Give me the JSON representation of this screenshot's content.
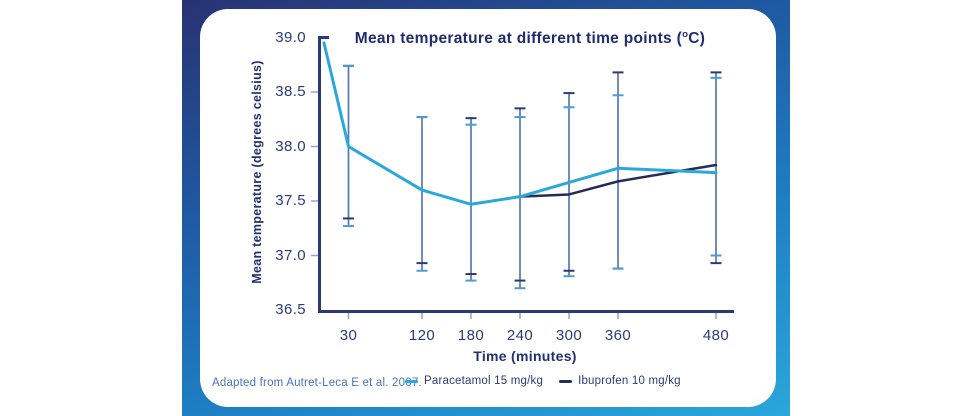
{
  "colors": {
    "frame_gradient_top": "#283273",
    "frame_gradient_bottom": "#2aa7dc",
    "card_background": "#ffffff",
    "title_text": "#1f2d6e",
    "tick_text": "#2c3a7a",
    "footer_text": "#4a73b8"
  },
  "chart_data": {
    "type": "line",
    "title": "Mean temperature at different time points (°C)",
    "title_parts": {
      "prefix": "Mean temperature at different time points (",
      "sup": "o",
      "suffix": "C)"
    },
    "xlabel": "Time (minutes)",
    "ylabel": "Mean temperature (degrees celsius)",
    "x_range": [
      0,
      480
    ],
    "ylim": [
      36.5,
      39.0
    ],
    "x_ticks": [
      30,
      120,
      180,
      240,
      300,
      360,
      480
    ],
    "y_ticks": [
      "39.0",
      "38.5",
      "38.0",
      "37.5",
      "37.0",
      "36.5"
    ],
    "grid": "off",
    "legend_position": "bottom",
    "series": [
      {
        "name": "Ibuprofen 10 mg/kg",
        "color": "#262d54",
        "line_width": 2.5,
        "x": [
          0,
          30,
          120,
          180,
          240,
          300,
          360,
          480
        ],
        "values": [
          null,
          null,
          null,
          null,
          37.54,
          37.56,
          37.68,
          37.83
        ]
      },
      {
        "name": "Paracetamol 15 mg/kg",
        "color": "#29a8dc",
        "line_width": 3,
        "x": [
          0,
          30,
          120,
          180,
          240,
          300,
          360,
          480
        ],
        "values": [
          38.95,
          38.0,
          37.6,
          37.47,
          37.54,
          37.67,
          37.8,
          37.76
        ]
      }
    ],
    "error_bars": [
      {
        "x": 30,
        "ibuprofen": [
          37.34,
          38.74
        ],
        "paracetamol": [
          37.27,
          38.74
        ]
      },
      {
        "x": 120,
        "ibuprofen": [
          36.93,
          38.27
        ],
        "paracetamol": [
          36.86,
          38.27
        ]
      },
      {
        "x": 180,
        "ibuprofen": [
          36.83,
          38.26
        ],
        "paracetamol": [
          36.77,
          38.2
        ]
      },
      {
        "x": 240,
        "ibuprofen": [
          36.77,
          38.35
        ],
        "paracetamol": [
          36.7,
          38.27
        ]
      },
      {
        "x": 300,
        "ibuprofen": [
          36.86,
          38.49
        ],
        "paracetamol": [
          36.81,
          38.36
        ]
      },
      {
        "x": 360,
        "ibuprofen": [
          36.88,
          38.68
        ],
        "paracetamol": [
          36.88,
          38.47
        ]
      },
      {
        "x": 480,
        "ibuprofen": [
          36.93,
          38.68
        ],
        "paracetamol": [
          37.0,
          38.63
        ]
      }
    ],
    "style": {
      "axis_color": "#2a3a76",
      "minor_tick_color": "#93a6cf",
      "error_line_color": "#5478b0",
      "error_cap_ibuprofen": "#2e3a6e",
      "error_cap_paracetamol": "#4b9cd6"
    },
    "legend": [
      {
        "label": "Paracetamol 15 mg/kg",
        "color": "#29a8dc"
      },
      {
        "label": "Ibuprofen 10 mg/kg",
        "color": "#262d54"
      }
    ],
    "source_note": "Adapted from Autret-Leca E et al. 2007."
  }
}
